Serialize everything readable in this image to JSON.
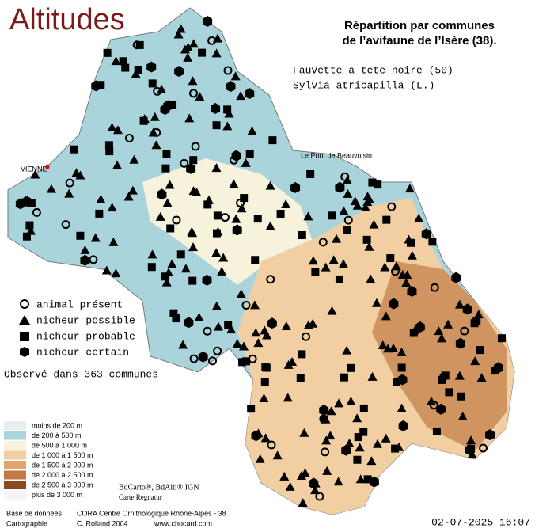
{
  "header": {
    "title": "Altitudes",
    "heading_line1": "Répartition par communes",
    "heading_line2": "de l’avifaune de l’Isère (38).",
    "species_common": "Fauvette a tete noire  (50)",
    "species_latin": "Sylvia atricapilla (L.)"
  },
  "symbol_legend": [
    "animal présent",
    "nicheur possible",
    "nicheur probable",
    "nicheur certain"
  ],
  "observed": "Observé dans 363 communes",
  "places": [
    "VIENNE",
    "Le Pont de Beauvoisin"
  ],
  "altitude_legend": [
    {
      "label": "moins de 200 m",
      "color": "#e8eef0"
    },
    {
      "label": "de 200 à 500 m",
      "color": "#a9d4dc"
    },
    {
      "label": "de 500 à 1 000 m",
      "color": "#f6f2dc"
    },
    {
      "label": "de 1 000 à 1 500 m",
      "color": "#f2cfa2"
    },
    {
      "label": "de 1 500 à 2 000 m",
      "color": "#dfa571"
    },
    {
      "label": "de 2 000 à 2 500 m",
      "color": "#c27a45"
    },
    {
      "label": "de 2 500 à 3 000 m",
      "color": "#8a4a1e"
    },
    {
      "label": "plus de 3 000 m",
      "color": "#f4f4f4"
    }
  ],
  "credits": {
    "sources": "BdCarto®, BdAlti® IGN",
    "carte": "Carte Regnatur",
    "db_label": "Base de données",
    "db": "CORA Centre Ornithologique Rhône-Alpes - 38",
    "carto_label": "Cartographie",
    "author": "C. Rolland 2004",
    "site": "www.chocard.com",
    "date": "02-07-2025 16:07"
  }
}
